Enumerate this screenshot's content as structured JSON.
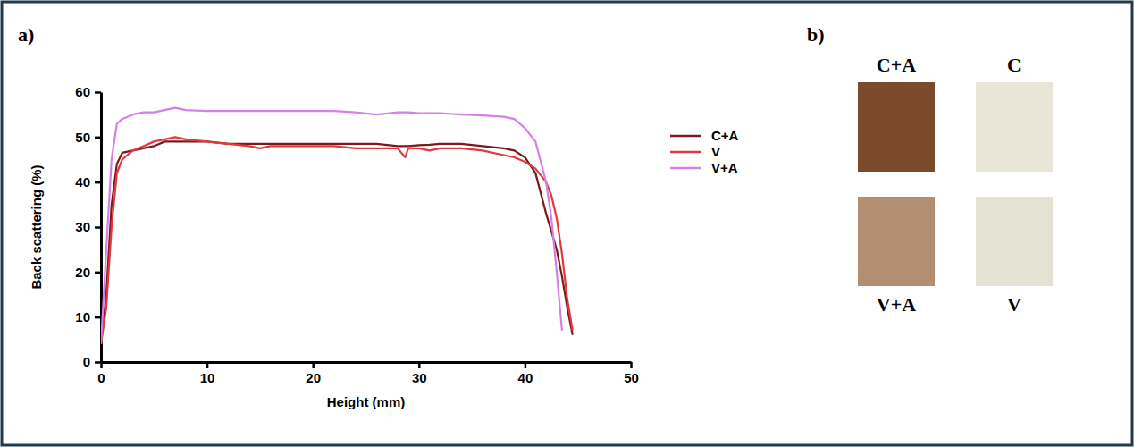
{
  "chart_data": {
    "type": "line",
    "xlabel": "Height (mm)",
    "ylabel": "Back scattering (%)",
    "xlim": [
      0,
      50
    ],
    "xticks": [
      0,
      10,
      20,
      30,
      40,
      50
    ],
    "ylim": [
      0,
      60
    ],
    "yticks": [
      0,
      10,
      20,
      30,
      40,
      50,
      60
    ],
    "grid": false,
    "legend": "right",
    "x": [
      0,
      0.5,
      1,
      1.5,
      2,
      3,
      4,
      5,
      6,
      7,
      8,
      10,
      12,
      14,
      15,
      16,
      18,
      20,
      22,
      24,
      26,
      28,
      28.7,
      29,
      30,
      31,
      32,
      34,
      36,
      38,
      39,
      40,
      41,
      42,
      42.5,
      43,
      43.5,
      44,
      44.5
    ],
    "series": [
      {
        "name": "C+A",
        "color": "#7b1a1a",
        "values": [
          4,
          15,
          35,
          44,
          46.5,
          47,
          47.5,
          48,
          49,
          49,
          49,
          49,
          48.5,
          48.5,
          48.5,
          48.5,
          48.5,
          48.5,
          48.5,
          48.5,
          48.5,
          48,
          48,
          48,
          48.2,
          48.3,
          48.5,
          48.5,
          48,
          47.5,
          47,
          45.5,
          42,
          33,
          29,
          25,
          19,
          12,
          6
        ]
      },
      {
        "name": "V",
        "color": "#e0393e",
        "values": [
          4,
          12,
          30,
          42,
          45,
          47,
          48,
          49,
          49.5,
          50,
          49.5,
          49,
          48.5,
          48,
          47.5,
          48,
          48,
          48,
          48,
          47.5,
          47.5,
          47.5,
          45.5,
          47.5,
          47.5,
          47,
          47.5,
          47.5,
          47,
          46,
          45.5,
          44.5,
          43,
          40,
          37,
          32,
          24,
          14,
          7
        ]
      },
      {
        "name": "V+A",
        "color": "#d67fe8",
        "values": [
          4,
          25,
          45,
          53,
          54,
          55,
          55.5,
          55.5,
          56,
          56.5,
          56,
          55.8,
          55.8,
          55.8,
          55.8,
          55.8,
          55.8,
          55.8,
          55.8,
          55.5,
          55,
          55.5,
          55.5,
          55.5,
          55.3,
          55.3,
          55.3,
          55,
          54.8,
          54.5,
          54,
          52,
          49,
          40,
          32,
          20,
          7,
          null,
          null
        ]
      }
    ]
  },
  "figure": {
    "panel_labels": [
      "a)",
      "b)"
    ],
    "photos": [
      {
        "label": "C+A",
        "color": "#7b4a2b"
      },
      {
        "label": "C",
        "color": "#e9e6d8"
      },
      {
        "label": "V+A",
        "color": "#b38e70"
      },
      {
        "label": "V",
        "color": "#e4e3d3"
      }
    ]
  }
}
